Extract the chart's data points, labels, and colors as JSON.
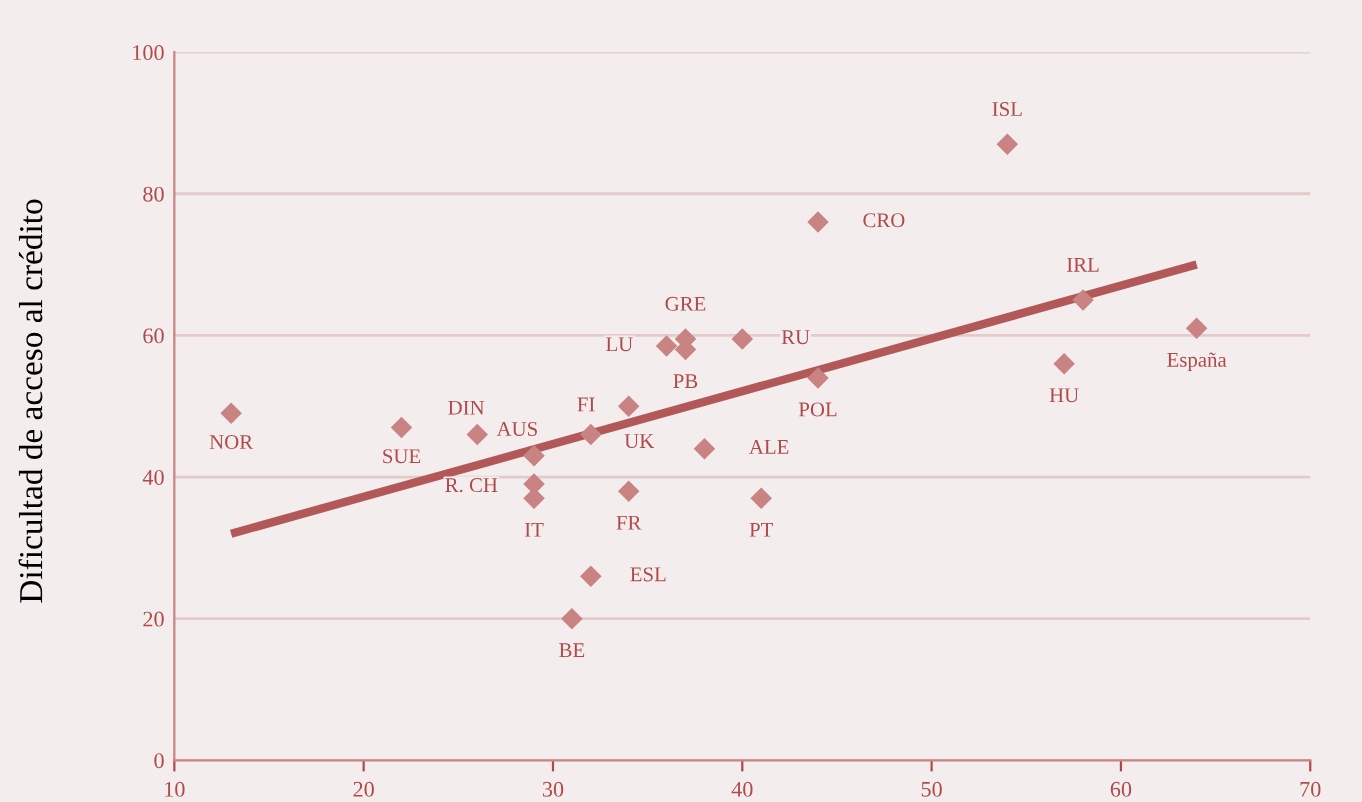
{
  "chart_data": {
    "type": "scatter",
    "ylabel": "Dificultad de acceso al crédito",
    "series": [
      {
        "marker": "diamond",
        "color": "#c98383",
        "x": [
          13,
          22,
          26,
          29,
          29,
          29,
          32,
          34,
          34,
          32,
          31,
          36,
          37,
          37,
          40,
          38,
          41,
          44,
          44,
          54,
          58,
          57,
          64
        ],
        "values": [
          49,
          47,
          46,
          43,
          39,
          37,
          46,
          50,
          38,
          26,
          20,
          58.5,
          59.5,
          58,
          59.5,
          44,
          37,
          54,
          76,
          87,
          65,
          56,
          61
        ]
      },
      {
        "type": "line",
        "color": "#b35858",
        "x": [
          13,
          64
        ],
        "values": [
          32,
          70
        ]
      }
    ],
    "annotations": [
      {
        "text": "NOR",
        "x": 13,
        "y": 49
      },
      {
        "text": "SUE",
        "x": 22,
        "y": 47
      },
      {
        "text": "DIN",
        "x": 26,
        "y": 46
      },
      {
        "text": "AUS",
        "x": 29,
        "y": 43
      },
      {
        "text": "R. CH",
        "x": 29,
        "y": 39
      },
      {
        "text": "IT",
        "x": 29,
        "y": 37
      },
      {
        "text": "UK",
        "x": 32,
        "y": 46
      },
      {
        "text": "FI",
        "x": 34,
        "y": 50
      },
      {
        "text": "FR",
        "x": 34,
        "y": 38
      },
      {
        "text": "ESL",
        "x": 32,
        "y": 26
      },
      {
        "text": "BE",
        "x": 31,
        "y": 20
      },
      {
        "text": "LU",
        "x": 36,
        "y": 58.5
      },
      {
        "text": "GRE",
        "x": 37,
        "y": 59.5
      },
      {
        "text": "PB",
        "x": 37,
        "y": 58
      },
      {
        "text": "RU",
        "x": 40,
        "y": 59.5
      },
      {
        "text": "ALE",
        "x": 38,
        "y": 44
      },
      {
        "text": "PT",
        "x": 41,
        "y": 37
      },
      {
        "text": "POL",
        "x": 44,
        "y": 54
      },
      {
        "text": "CRO",
        "x": 44,
        "y": 76
      },
      {
        "text": "ISL",
        "x": 54,
        "y": 87
      },
      {
        "text": "IRL",
        "x": 58,
        "y": 65
      },
      {
        "text": "HU",
        "x": 57,
        "y": 56
      },
      {
        "text": "España",
        "x": 64,
        "y": 61
      }
    ],
    "xlim": [
      10,
      70
    ],
    "xticks": [
      10,
      20,
      30,
      40,
      50,
      60,
      70
    ],
    "ylim": [
      0,
      100
    ],
    "yticks": [
      0,
      20,
      40,
      60,
      80,
      100
    ],
    "grid": "y",
    "legend": false
  }
}
